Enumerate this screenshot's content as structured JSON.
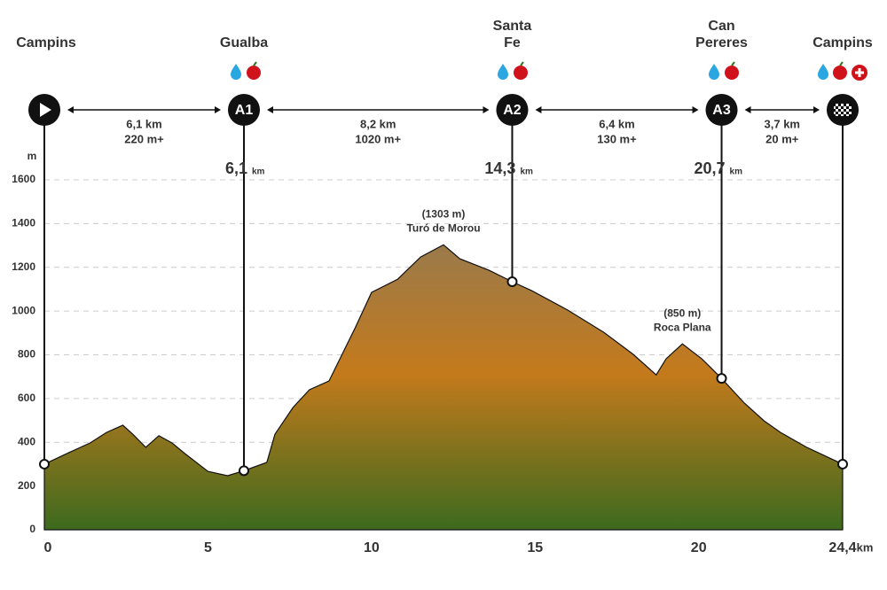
{
  "chart_data": {
    "type": "area",
    "y_unit": "m",
    "x_unit": "km",
    "xlim": [
      0,
      24.4
    ],
    "xticks": [
      0,
      5,
      10,
      15,
      20,
      {
        "value": 24.4,
        "label": "24,4"
      }
    ],
    "ylim": [
      0,
      1600
    ],
    "yticks": [
      0,
      200,
      400,
      600,
      800,
      1000,
      1200,
      1400,
      1600
    ],
    "grid": true,
    "x": [
      0,
      0.8,
      1.4,
      1.9,
      2.4,
      2.7,
      3.1,
      3.5,
      3.9,
      4.3,
      5.0,
      5.6,
      6.1,
      6.8,
      7.05,
      7.6,
      8.1,
      8.7,
      9.1,
      9.5,
      10.0,
      10.8,
      11.5,
      12.2,
      12.7,
      13.6,
      14.3,
      14.9,
      16.0,
      17.1,
      18.0,
      18.7,
      19.0,
      19.5,
      20.1,
      20.7,
      21.4,
      22.0,
      22.5,
      23.3,
      24.4
    ],
    "values": [
      300,
      356,
      397,
      445,
      478,
      437,
      377,
      430,
      397,
      348,
      267,
      247,
      270,
      308,
      437,
      559,
      640,
      680,
      802,
      923,
      1085,
      1146,
      1247,
      1303,
      1239,
      1186,
      1134,
      1093,
      1004,
      903,
      802,
      708,
      781,
      850,
      781,
      692,
      579,
      498,
      445,
      377,
      300
    ],
    "stations": [
      {
        "name": [
          "Campins"
        ],
        "km": 0,
        "elevation": 300
      },
      {
        "name": [
          "Gualba"
        ],
        "code": "A1",
        "km": 6.1,
        "km_label": "6,1",
        "elevation": 270
      },
      {
        "name": [
          "Santa",
          "Fe"
        ],
        "code": "A2",
        "km": 14.3,
        "km_label": "14,3",
        "elevation": 1134
      },
      {
        "name": [
          "Can",
          "Pereres"
        ],
        "code": "A3",
        "km": 20.7,
        "km_label": "20,7",
        "elevation": 692
      },
      {
        "name": [
          "Campins"
        ],
        "km": 24.4,
        "elevation": 300
      }
    ],
    "segments": [
      {
        "distance": "6,1 km",
        "gain": "220 m+"
      },
      {
        "distance": "8,2 km",
        "gain": "1020 m+"
      },
      {
        "distance": "6,4 km",
        "gain": "130 m+"
      },
      {
        "distance": "3,7 km",
        "gain": "20 m+"
      }
    ],
    "annotations": [
      {
        "label": "(1303 m)",
        "name": "Turó de Morou",
        "x": 12.2,
        "y": 1303
      },
      {
        "label": "(850 m)",
        "name": "Roca Plana",
        "x": 19.5,
        "y": 850
      }
    ]
  }
}
